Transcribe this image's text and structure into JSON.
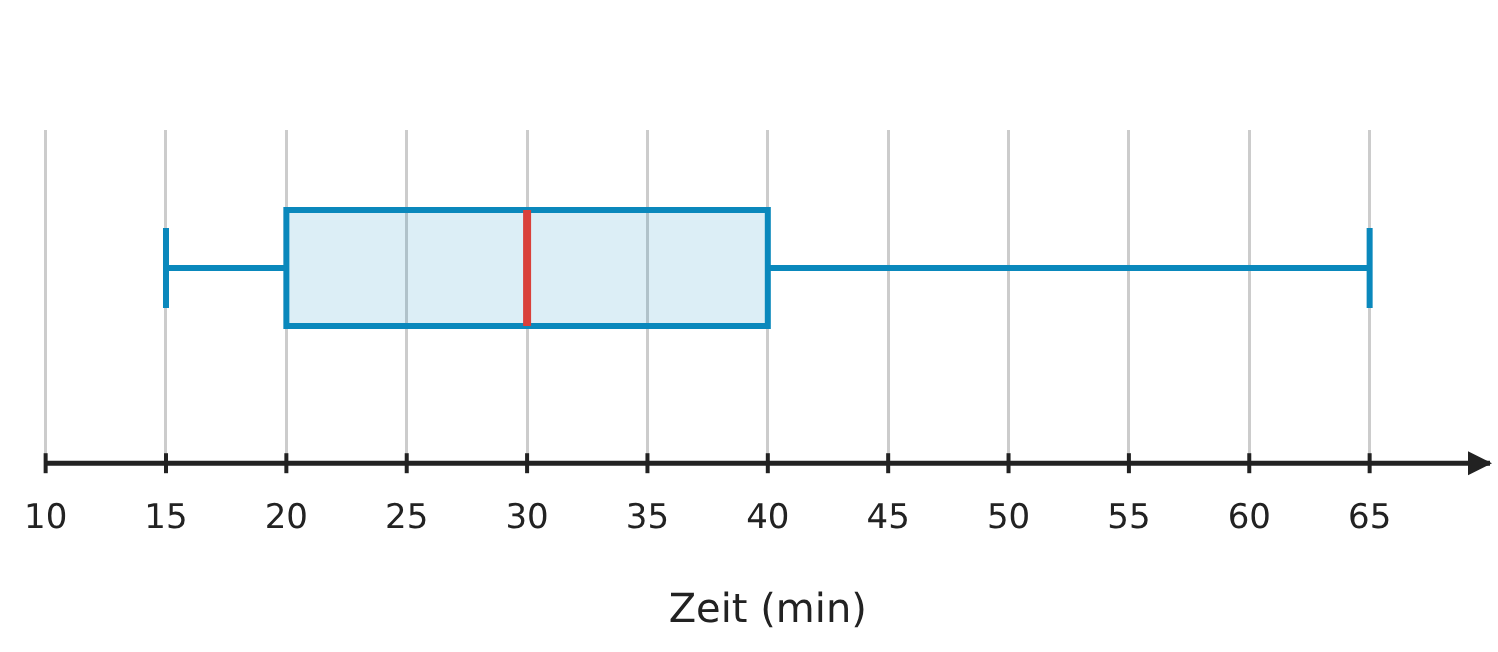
{
  "chart_data": {
    "type": "box",
    "orientation": "horizontal",
    "categories": [
      null
    ],
    "boxes": [
      {
        "low": 15,
        "q1": 20,
        "median": 30,
        "q3": 40,
        "high": 65
      }
    ],
    "color": "#0a88bc",
    "xlabel": "Zeit (min)",
    "xlim": [
      10,
      70
    ],
    "xticks": [
      10,
      15,
      20,
      25,
      30,
      35,
      40,
      45,
      50,
      55,
      60,
      65
    ],
    "grid": "x"
  }
}
